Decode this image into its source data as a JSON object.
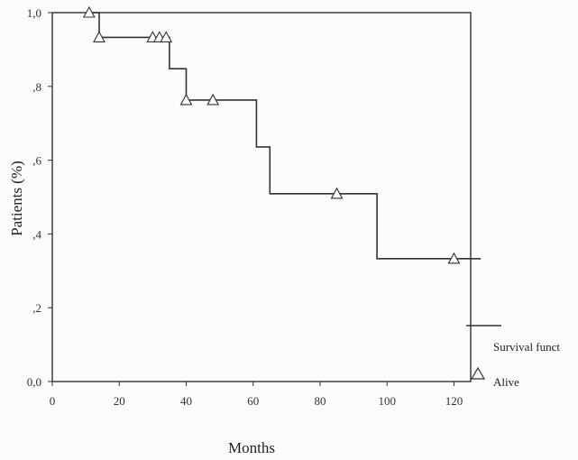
{
  "chart_data": {
    "type": "line",
    "title": "",
    "xlabel": "Months",
    "ylabel": "Patients (%)",
    "xlim": [
      0,
      125
    ],
    "ylim": [
      0,
      1.0
    ],
    "x_ticks": [
      0,
      20,
      40,
      60,
      80,
      100,
      120
    ],
    "x_tick_labels": [
      "0",
      "20",
      "40",
      "60",
      "80",
      "100",
      "120"
    ],
    "y_ticks": [
      0.0,
      0.2,
      0.4,
      0.6,
      0.8,
      1.0
    ],
    "y_tick_labels": [
      "0,0",
      ",2",
      ",4",
      ",6",
      ",8",
      "1,0"
    ],
    "grid": false,
    "legend_position": "bottom-right",
    "series": [
      {
        "name": "Survival funct",
        "style": "step",
        "color": "#333333",
        "points": [
          [
            11,
            1.0
          ],
          [
            14,
            1.0
          ],
          [
            14,
            0.933
          ],
          [
            35,
            0.933
          ],
          [
            35,
            0.848
          ],
          [
            40,
            0.848
          ],
          [
            40,
            0.763
          ],
          [
            61,
            0.763
          ],
          [
            61,
            0.636
          ],
          [
            65,
            0.636
          ],
          [
            65,
            0.509
          ],
          [
            97,
            0.509
          ],
          [
            97,
            0.333
          ],
          [
            128,
            0.333
          ]
        ]
      },
      {
        "name": "Alive",
        "style": "triangle-markers",
        "color": "#333333",
        "points": [
          [
            11,
            1.0
          ],
          [
            14,
            0.933
          ],
          [
            30,
            0.933
          ],
          [
            32,
            0.933
          ],
          [
            34,
            0.933
          ],
          [
            40,
            0.763
          ],
          [
            48,
            0.763
          ],
          [
            85,
            0.509
          ],
          [
            120,
            0.333
          ]
        ]
      }
    ]
  }
}
